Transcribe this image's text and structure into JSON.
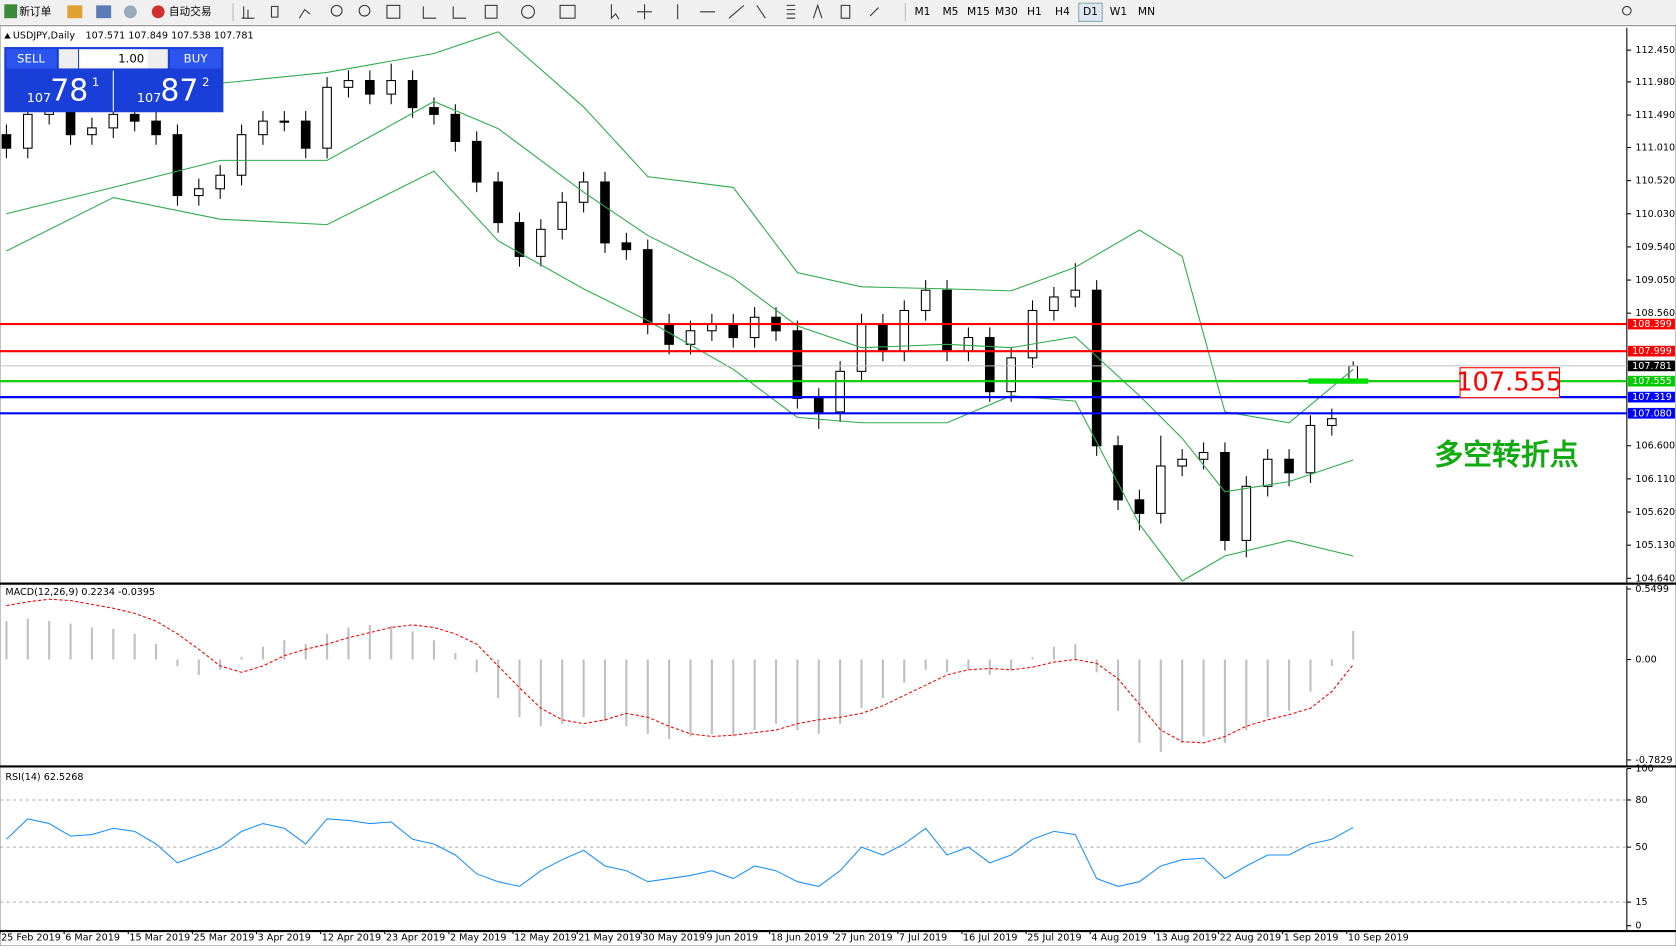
{
  "toolbar": {
    "new_order": "新订单",
    "auto_trading": "自动交易",
    "timeframes": [
      "M1",
      "M5",
      "M15",
      "M30",
      "H1",
      "H4",
      "D1",
      "W1",
      "MN"
    ],
    "active_timeframe": "D1"
  },
  "trade_panel": {
    "sell": "SELL",
    "lots": "1.00",
    "buy": "BUY",
    "bid_big": "107",
    "bid_main": "78",
    "bid_small": "1",
    "ask_big": "107",
    "ask_main": "87",
    "ask_small": "2"
  },
  "chart_data": [
    {
      "type": "candlestick",
      "title": "USDJPY,Daily",
      "ohlc_label": "107.571 107.849 107.538 107.781",
      "open": [
        111.2,
        111.0,
        111.5,
        111.6,
        111.2,
        111.3,
        111.5,
        111.4,
        111.2,
        110.3,
        110.4,
        110.6,
        111.2,
        111.4,
        111.4,
        111.0,
        111.9,
        112.0,
        111.8,
        112.0,
        111.6,
        111.5,
        111.1,
        110.5,
        109.9,
        109.4,
        109.8,
        110.2,
        110.5,
        109.6,
        109.5,
        108.4,
        108.1,
        108.3,
        108.4,
        108.2,
        108.5,
        108.3,
        107.3,
        107.1,
        107.7,
        108.4,
        108.0,
        108.6,
        108.9,
        108.0,
        108.2,
        107.4,
        107.9,
        108.6,
        108.8,
        108.9,
        106.6,
        105.8,
        105.6,
        106.3,
        106.4,
        106.5,
        105.2,
        106.0,
        106.4,
        106.2,
        106.9,
        107.571
      ],
      "high": [
        111.35,
        111.65,
        111.75,
        111.75,
        111.45,
        111.65,
        111.65,
        111.55,
        111.35,
        110.55,
        110.75,
        111.35,
        111.55,
        111.55,
        111.55,
        112.05,
        112.15,
        112.15,
        112.25,
        112.15,
        111.75,
        111.65,
        111.25,
        110.65,
        110.05,
        109.95,
        110.35,
        110.65,
        110.65,
        109.75,
        109.65,
        108.55,
        108.45,
        108.55,
        108.55,
        108.65,
        108.65,
        108.45,
        107.45,
        107.85,
        108.55,
        108.55,
        108.75,
        109.05,
        109.05,
        108.35,
        108.35,
        108.05,
        108.75,
        108.95,
        109.3,
        109.05,
        106.75,
        105.95,
        106.75,
        106.55,
        106.65,
        106.65,
        106.15,
        106.55,
        106.55,
        107.05,
        107.15,
        107.849
      ],
      "low": [
        110.85,
        110.85,
        111.35,
        111.05,
        111.05,
        111.15,
        111.25,
        111.05,
        110.15,
        110.15,
        110.25,
        110.45,
        111.05,
        111.25,
        110.85,
        110.85,
        111.75,
        111.65,
        111.65,
        111.45,
        111.35,
        110.95,
        110.35,
        109.75,
        109.25,
        109.25,
        109.65,
        110.05,
        109.45,
        109.35,
        108.25,
        107.95,
        107.95,
        108.15,
        108.05,
        108.05,
        108.15,
        107.15,
        106.85,
        106.95,
        107.55,
        107.85,
        107.85,
        108.45,
        107.85,
        107.85,
        107.25,
        107.25,
        107.75,
        108.45,
        108.65,
        106.45,
        105.65,
        105.35,
        105.45,
        106.15,
        106.25,
        105.05,
        104.95,
        105.85,
        106.0,
        106.05,
        106.75,
        107.538
      ],
      "close": [
        111.0,
        111.5,
        111.6,
        111.2,
        111.3,
        111.5,
        111.4,
        111.2,
        110.3,
        110.4,
        110.6,
        111.2,
        111.4,
        111.4,
        111.0,
        111.9,
        112.0,
        111.8,
        112.0,
        111.6,
        111.5,
        111.1,
        110.5,
        109.9,
        109.4,
        109.8,
        110.2,
        110.5,
        109.6,
        109.5,
        108.4,
        108.1,
        108.3,
        108.4,
        108.2,
        108.5,
        108.3,
        107.3,
        107.1,
        107.7,
        108.4,
        108.0,
        108.6,
        108.9,
        108.0,
        108.2,
        107.4,
        107.9,
        108.6,
        108.8,
        108.9,
        106.6,
        105.8,
        105.6,
        106.3,
        106.4,
        106.5,
        105.2,
        106.0,
        106.4,
        106.2,
        106.9,
        107.0,
        107.781
      ],
      "up_color": "#ffffff",
      "down_color": "#000000",
      "bollinger": {
        "color": "#2eaa4e",
        "x": [
          0,
          5,
          10,
          15,
          20,
          23,
          27,
          30,
          34,
          37,
          40,
          44,
          47,
          50,
          53,
          55,
          57,
          60,
          63
        ],
        "upper": [
          111.93,
          112.05,
          111.96,
          112.12,
          112.4,
          112.72,
          111.61,
          110.58,
          110.42,
          109.16,
          108.95,
          108.92,
          108.89,
          109.24,
          109.79,
          109.4,
          107.1,
          106.94,
          107.73
        ],
        "middle": [
          110.03,
          110.42,
          110.82,
          110.82,
          111.69,
          111.29,
          110.35,
          109.71,
          109.08,
          108.37,
          108.05,
          108.1,
          108.05,
          108.21,
          107.34,
          106.71,
          105.92,
          106.07,
          106.39
        ],
        "lower": [
          109.48,
          110.27,
          109.95,
          109.87,
          110.66,
          109.63,
          108.92,
          108.45,
          107.73,
          107.02,
          106.94,
          106.94,
          107.34,
          107.26,
          105.44,
          104.6,
          104.97,
          105.2,
          104.97
        ]
      },
      "levels": [
        {
          "value": 108.399,
          "color": "#ff0000"
        },
        {
          "value": 107.999,
          "color": "#ff0000"
        },
        {
          "value": 107.781,
          "color": "#c0c0c0"
        },
        {
          "value": 107.555,
          "color": "#00cc00"
        },
        {
          "value": 107.319,
          "color": "#0000ff"
        },
        {
          "value": 107.08,
          "label": "107.080",
          "color": "#0000ff"
        }
      ],
      "annotation": "多空转折点",
      "xlim": [
        -0.3,
        75.8
      ],
      "ylim": [
        104.577,
        112.78
      ],
      "yticks": [
        {
          "value": 112.45,
          "label": "112.450"
        },
        {
          "value": 111.98,
          "label": "111.980"
        },
        {
          "value": 111.49,
          "label": "111.490"
        },
        {
          "value": 111.01,
          "label": "111.010"
        },
        {
          "value": 110.52,
          "label": "110.520"
        },
        {
          "value": 110.03,
          "label": "110.030"
        },
        {
          "value": 109.54,
          "label": "109.540"
        },
        {
          "value": 109.05,
          "label": "109.050"
        },
        {
          "value": 108.56,
          "label": "108.560"
        },
        {
          "value": 106.6,
          "label": "106.600"
        },
        {
          "value": 106.11,
          "label": "106.110"
        },
        {
          "value": 105.62,
          "label": "105.620"
        },
        {
          "value": 105.13,
          "label": "105.130"
        },
        {
          "value": 104.64,
          "label": "104.640"
        }
      ],
      "xticks": [
        {
          "value": -0.3,
          "label": "25 Feb 2019"
        },
        {
          "value": 2.7,
          "label": "6 Mar 2019"
        },
        {
          "value": 5.7,
          "label": "15 Mar 2019"
        },
        {
          "value": 8.7,
          "label": "25 Mar 2019"
        },
        {
          "value": 11.7,
          "label": "3 Apr 2019"
        },
        {
          "value": 14.7,
          "label": "12 Apr 2019"
        },
        {
          "value": 17.7,
          "label": "23 Apr 2019"
        },
        {
          "value": 20.7,
          "label": "2 May 2019"
        },
        {
          "value": 23.7,
          "label": "12 May 2019"
        },
        {
          "value": 26.7,
          "label": "21 May 2019"
        },
        {
          "value": 29.7,
          "label": "30 May 2019"
        },
        {
          "value": 32.7,
          "label": "9 Jun 2019"
        },
        {
          "value": 35.7,
          "label": "18 Jun 2019"
        },
        {
          "value": 38.7,
          "label": "27 Jun 2019"
        },
        {
          "value": 41.7,
          "label": "7 Jul 2019"
        },
        {
          "value": 44.7,
          "label": "16 Jul 2019"
        },
        {
          "value": 47.7,
          "label": "25 Jul 2019"
        },
        {
          "value": 50.7,
          "label": "4 Aug 2019"
        },
        {
          "value": 53.7,
          "label": "13 Aug 2019"
        },
        {
          "value": 56.7,
          "label": "22 Aug 2019"
        },
        {
          "value": 59.7,
          "label": "1 Sep 2019"
        },
        {
          "value": 62.7,
          "label": "10 Sep 2019"
        }
      ]
    },
    {
      "type": "macd",
      "title": "MACD(12,26,9) 0.2234 -0.0395",
      "histogram": [
        0.3,
        0.32,
        0.3,
        0.28,
        0.25,
        0.24,
        0.2,
        0.12,
        -0.05,
        -0.12,
        -0.08,
        0.02,
        0.1,
        0.15,
        0.12,
        0.2,
        0.25,
        0.27,
        0.26,
        0.22,
        0.15,
        0.05,
        -0.1,
        -0.3,
        -0.45,
        -0.52,
        -0.5,
        -0.45,
        -0.48,
        -0.52,
        -0.58,
        -0.62,
        -0.6,
        -0.58,
        -0.6,
        -0.55,
        -0.5,
        -0.55,
        -0.58,
        -0.5,
        -0.38,
        -0.3,
        -0.18,
        -0.08,
        -0.1,
        -0.08,
        -0.12,
        -0.08,
        0.02,
        0.1,
        0.12,
        -0.1,
        -0.4,
        -0.65,
        -0.72,
        -0.65,
        -0.6,
        -0.65,
        -0.55,
        -0.45,
        -0.4,
        -0.25,
        -0.05,
        0.2234
      ],
      "signal": [
        0.42,
        0.45,
        0.47,
        0.46,
        0.43,
        0.4,
        0.36,
        0.3,
        0.2,
        0.08,
        -0.05,
        -0.1,
        -0.05,
        0.03,
        0.08,
        0.12,
        0.17,
        0.21,
        0.25,
        0.27,
        0.25,
        0.2,
        0.12,
        -0.05,
        -0.22,
        -0.38,
        -0.47,
        -0.5,
        -0.47,
        -0.42,
        -0.45,
        -0.52,
        -0.58,
        -0.6,
        -0.59,
        -0.57,
        -0.55,
        -0.5,
        -0.47,
        -0.45,
        -0.42,
        -0.36,
        -0.28,
        -0.2,
        -0.12,
        -0.08,
        -0.07,
        -0.08,
        -0.06,
        -0.02,
        0,
        -0.03,
        -0.15,
        -0.35,
        -0.55,
        -0.64,
        -0.65,
        -0.6,
        -0.52,
        -0.47,
        -0.43,
        -0.38,
        -0.25,
        -0.0395
      ],
      "histogram_color": "#c0c0c0",
      "signal_color": "#ff0000",
      "ylim": [
        -0.825,
        0.575
      ],
      "yticks": [
        0.5499,
        {
          "value": 0,
          "label": "0.00"
        },
        -0.7829
      ]
    },
    {
      "type": "rsi",
      "title": "RSI(14) 62.5268",
      "values": [
        55,
        68,
        65,
        57,
        58,
        62,
        60,
        52,
        40,
        45,
        50,
        60,
        65,
        62,
        52,
        68,
        67,
        65,
        66,
        55,
        52,
        45,
        33,
        28,
        25,
        35,
        42,
        48,
        38,
        35,
        28,
        30,
        32,
        35,
        30,
        38,
        35,
        28,
        25,
        35,
        50,
        45,
        52,
        62,
        45,
        50,
        40,
        45,
        55,
        60,
        58,
        30,
        25,
        28,
        38,
        42,
        43,
        30,
        38,
        45,
        45,
        52,
        55,
        62.5268
      ],
      "color": "#1e90ff",
      "ylim": [
        -2.7,
        100
      ],
      "yticks": [
        0,
        15,
        50,
        80,
        100
      ],
      "levels": [
        15,
        50,
        80
      ]
    }
  ]
}
